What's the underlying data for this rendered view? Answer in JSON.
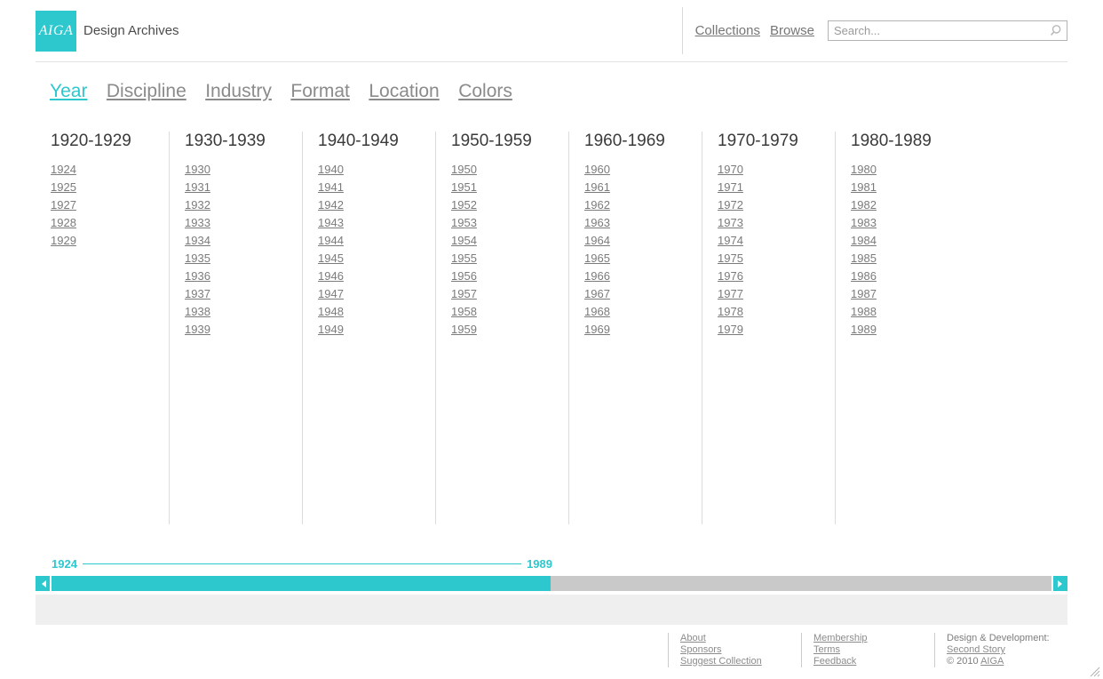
{
  "colors": {
    "accent": "#2dc8cd",
    "track_gray": "#c9c9c9",
    "panel_gray": "#efefef"
  },
  "header": {
    "logo_text": "AIGA",
    "site_title": "Design Archives",
    "collections_label": "Collections",
    "browse_label": "Browse",
    "search": {
      "value": "",
      "placeholder": "Search..."
    }
  },
  "facets": {
    "tabs": [
      {
        "label": "Year",
        "active": true
      },
      {
        "label": "Discipline",
        "active": false
      },
      {
        "label": "Industry",
        "active": false
      },
      {
        "label": "Format",
        "active": false
      },
      {
        "label": "Location",
        "active": false
      },
      {
        "label": "Colors",
        "active": false
      }
    ]
  },
  "decades": [
    {
      "label": "1920-1929",
      "years": [
        "1924",
        "1925",
        "1927",
        "1928",
        "1929"
      ]
    },
    {
      "label": "1930-1939",
      "years": [
        "1930",
        "1931",
        "1932",
        "1933",
        "1934",
        "1935",
        "1936",
        "1937",
        "1938",
        "1939"
      ]
    },
    {
      "label": "1940-1949",
      "years": [
        "1940",
        "1941",
        "1942",
        "1943",
        "1944",
        "1945",
        "1946",
        "1947",
        "1948",
        "1949"
      ]
    },
    {
      "label": "1950-1959",
      "years": [
        "1950",
        "1951",
        "1952",
        "1953",
        "1954",
        "1955",
        "1956",
        "1957",
        "1958",
        "1959"
      ]
    },
    {
      "label": "1960-1969",
      "years": [
        "1960",
        "1961",
        "1962",
        "1963",
        "1964",
        "1965",
        "1966",
        "1967",
        "1968",
        "1969"
      ]
    },
    {
      "label": "1970-1979",
      "years": [
        "1970",
        "1971",
        "1972",
        "1973",
        "1974",
        "1975",
        "1976",
        "1977",
        "1978",
        "1979"
      ]
    },
    {
      "label": "1980-1989",
      "years": [
        "1980",
        "1981",
        "1982",
        "1983",
        "1984",
        "1985",
        "1986",
        "1987",
        "1988",
        "1989"
      ]
    }
  ],
  "timeline": {
    "start_label": "1924",
    "end_label": "1989"
  },
  "footer": {
    "col1": [
      "About",
      "Sponsors",
      "Suggest Collection"
    ],
    "col2": [
      "Membership",
      "Terms",
      "Feedback"
    ],
    "credits_label": "Design & Development:",
    "credits_link": "Second Story",
    "copyright_prefix": "© 2010 ",
    "copyright_link": "AIGA"
  }
}
